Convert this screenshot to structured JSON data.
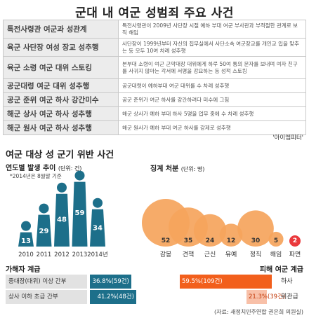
{
  "title": "군대 내 여군 성범죄 주요 사건",
  "cases": [
    {
      "name": "특전사령관 여군과 성관계",
      "desc": "특전사령관이 2009년 사단장 시절 예하 부대 여군 부사관과 부적절한 관계로 보직 해임"
    },
    {
      "name": "육군 사단장 여성 장교 성추행",
      "desc": "사단장이 1999년부터 자신의 집무실에서 사단소속 여군장교를 개인교 입을 맞추는 등 모두 10여 차례 성추행"
    },
    {
      "name": "육군 소령 여군 대위 스토킹",
      "desc": "본부대 소령이 여군 군악대장 대위에게 하루 50여 통의 문자를 보내며 여자 친구를 사귀지 않아는 각서에 서명을 강요하는 등 성적 스토킹"
    },
    {
      "name": "공군대령 여군 대위 성추행",
      "desc": "공군대령이 예하부대 여군 대위를 수 차례 성추행"
    },
    {
      "name": "공군 준위 여군 하사 강간미수",
      "desc": "공군 준위가 여군 하사를 강간하려다 미수에 그침"
    },
    {
      "name": "해군 상사 여군 하사 성추행",
      "desc": "해군 상사가 예하 부대 하사 5명을 업무 중에 수 차례 성추행"
    },
    {
      "name": "해군 원사 여군 하사 성추행",
      "desc": "해군 원사가 예하 부대 여군 하사를 강제로 성추행"
    }
  ],
  "credit": "'아이엠피터'",
  "section_title": "여군 대상 성 군기 위반 사건",
  "trend": {
    "label": "연도별 발생 추이",
    "unit": "(단위: 건)",
    "note": "*2014년은 8월말 기준",
    "color": "#1d6f8a"
  },
  "discipline": {
    "label": "징계 처분",
    "unit": "(단위: 명)",
    "bubble_color": "#f5a45c",
    "highlight_color": "#e8282b"
  },
  "perpetrator": {
    "label": "가해자 계급"
  },
  "victim": {
    "label": "피해 여군 계급"
  },
  "source": "(자료: 새정치민주연합 권은희 의원실)",
  "chart_data": [
    {
      "type": "bar",
      "title": "연도별 발생 추이",
      "ylabel": "(단위: 건)",
      "categories": [
        "2010",
        "2011",
        "2012",
        "2013",
        "2014년"
      ],
      "values": [
        13,
        29,
        48,
        59,
        34
      ],
      "ylim": [
        0,
        60
      ]
    },
    {
      "type": "scatter",
      "title": "징계 처분",
      "ylabel": "(단위: 명)",
      "categories": [
        "감봉",
        "견책",
        "근신",
        "유예",
        "정직",
        "해임",
        "파면"
      ],
      "values": [
        52,
        35,
        24,
        12,
        30,
        5,
        2
      ]
    },
    {
      "type": "bar",
      "title": "가해자 계급",
      "series": [
        {
          "category": "중대장(대위) 이상 간부",
          "percent": 36.8,
          "count": 59,
          "label": "36.8%(59건)"
        },
        {
          "category": "상사 이하 초급 간부",
          "percent": 41.2,
          "count": 48,
          "label": "41.2%(48건)"
        }
      ]
    },
    {
      "type": "bar",
      "title": "피해 여군 계급",
      "series": [
        {
          "category": "하사",
          "percent": 59.5,
          "count": 109,
          "label": "59.5%(109건)"
        },
        {
          "category": "위관급",
          "percent": 21.3,
          "count": 39,
          "label": "21.3%(39건)"
        }
      ]
    }
  ]
}
